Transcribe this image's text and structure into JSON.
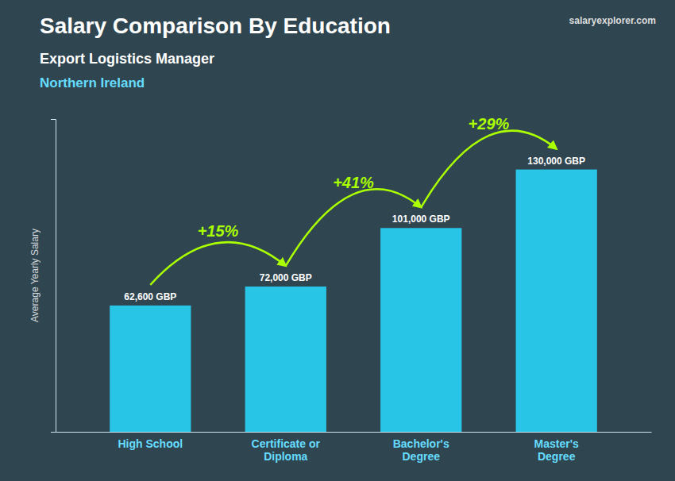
{
  "chart_data": {
    "type": "bar",
    "title": "Salary Comparison By Education",
    "subtitle": "Export Logistics Manager",
    "location": "Northern Ireland",
    "source": "salaryexplorer.com",
    "ylabel": "Average Yearly Salary",
    "categories": [
      "High School",
      "Certificate or\nDiploma",
      "Bachelor's\nDegree",
      "Master's\nDegree"
    ],
    "values": [
      62600,
      72000,
      101000,
      130000
    ],
    "value_labels": [
      "62,600 GBP",
      "72,000 GBP",
      "101,000 GBP",
      "130,000 GBP"
    ],
    "annotations": [
      "+15%",
      "+41%",
      "+29%"
    ],
    "color": "#29c5e6",
    "ylim": [
      0,
      155000
    ],
    "yticks": [],
    "tick_labels": "x",
    "grid": false
  }
}
